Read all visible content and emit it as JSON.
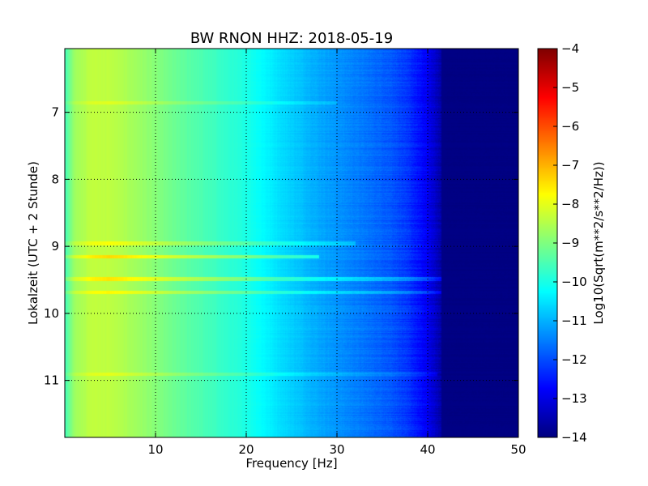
{
  "chart_data": {
    "type": "heatmap",
    "title": "BW RNON HHZ: 2018-05-19",
    "xlabel": "Frequency [Hz]",
    "ylabel": "Lokalzeit (UTC + 2 Stunde)",
    "colorbar_label": "Log10(Sqrt(m**2/s**2/Hz))",
    "xlim": [
      0,
      50
    ],
    "ylim": [
      11.85,
      6.05
    ],
    "y_inverted": true,
    "x_ticks": [
      10,
      20,
      30,
      40,
      50
    ],
    "y_ticks": [
      7,
      8,
      9,
      10,
      11
    ],
    "colorbar_ticks": [
      -4,
      -5,
      -6,
      -7,
      -8,
      -9,
      -10,
      -11,
      -12,
      -13,
      -14
    ],
    "color_range": [
      -14,
      -4
    ],
    "colormap": "jet",
    "grid": true,
    "grid_style": "dotted",
    "spectrum_profile": {
      "frequency_hz": [
        0,
        1,
        3,
        5,
        8,
        12,
        16,
        20,
        24,
        28,
        32,
        36,
        38,
        40,
        42,
        50
      ],
      "log10_amplitude": [
        -9.6,
        -8.7,
        -8.35,
        -8.4,
        -8.7,
        -9.2,
        -9.6,
        -10.0,
        -10.6,
        -11.1,
        -11.5,
        -11.9,
        -12.3,
        -12.9,
        -13.9,
        -14
      ]
    },
    "horizontal_bands": [
      {
        "time": 9.48,
        "max_frequency_hz": 43.5,
        "log10_amplitude_offset": 0.9
      },
      {
        "time": 9.68,
        "max_frequency_hz": 42.0,
        "log10_amplitude_offset": 0.7
      },
      {
        "time": 9.15,
        "max_frequency_hz": 28.0,
        "log10_amplitude_offset": 1.0
      },
      {
        "time": 8.95,
        "max_frequency_hz": 32.0,
        "log10_amplitude_offset": 0.6
      },
      {
        "time": 10.9,
        "max_frequency_hz": 41.0,
        "log10_amplitude_offset": 0.4
      },
      {
        "time": 6.85,
        "max_frequency_hz": 30.0,
        "log10_amplitude_offset": 0.35
      }
    ]
  }
}
